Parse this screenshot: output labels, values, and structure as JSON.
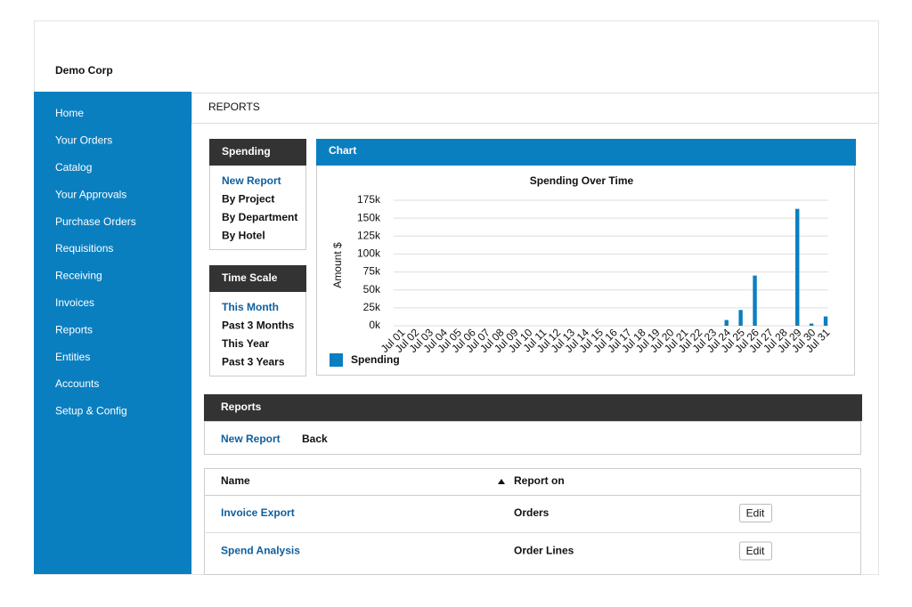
{
  "header": {
    "company": "Demo Corp"
  },
  "nav": [
    "Home",
    "Your Orders",
    "Catalog",
    "Your Approvals",
    "Purchase Orders",
    "Requisitions",
    "Receiving",
    "Invoices",
    "Reports",
    "Entities",
    "Accounts",
    "Setup & Config"
  ],
  "page_title": "REPORTS",
  "spending_panel": {
    "title": "Spending",
    "items": [
      "New Report",
      "By Project",
      "By Department",
      "By Hotel"
    ]
  },
  "time_scale_panel": {
    "title": "Time Scale",
    "items": [
      "This Month",
      "Past 3 Months",
      "This Year",
      "Past 3 Years"
    ]
  },
  "chart_panel_title": "Chart",
  "chart_data": {
    "type": "bar",
    "title": "Spending Over Time",
    "y_label": "Amount $",
    "categories": [
      "Jul 01",
      "Jul 02",
      "Jul 03",
      "Jul 04",
      "Jul 05",
      "Jul 06",
      "Jul 07",
      "Jul 08",
      "Jul 09",
      "Jul 10",
      "Jul 11",
      "Jul 12",
      "Jul 13",
      "Jul 14",
      "Jul 15",
      "Jul 16",
      "Jul 17",
      "Jul 18",
      "Jul 19",
      "Jul 20",
      "Jul 21",
      "Jul 22",
      "Jul 23",
      "Jul 24",
      "Jul 25",
      "Jul 26",
      "Jul 27",
      "Jul 28",
      "Jul 29",
      "Jul 30",
      "Jul 31"
    ],
    "series": [
      {
        "name": "Spending",
        "color": "#0a7fc0",
        "values": [
          0,
          0,
          0,
          0,
          0,
          0,
          0,
          0,
          0,
          0,
          0,
          0,
          0,
          0,
          0,
          0,
          0,
          0,
          0,
          0,
          0,
          0,
          0,
          8000,
          22000,
          70000,
          0,
          0,
          163000,
          3000,
          13000
        ]
      }
    ],
    "ylim": [
      0,
      175000
    ],
    "yticks": [
      {
        "value": 0,
        "label": "0k"
      },
      {
        "value": 25000,
        "label": "25k"
      },
      {
        "value": 50000,
        "label": "50k"
      },
      {
        "value": 75000,
        "label": "75k"
      },
      {
        "value": 100000,
        "label": "100k"
      },
      {
        "value": 125000,
        "label": "125k"
      },
      {
        "value": 150000,
        "label": "150k"
      },
      {
        "value": 175000,
        "label": "175k"
      }
    ],
    "grid": true
  },
  "reports": {
    "title": "Reports",
    "actions": [
      "New Report",
      "Back"
    ],
    "columns": [
      "Name",
      "Report on"
    ],
    "rows": [
      [
        "Invoice Export",
        "Orders",
        "Edit"
      ],
      [
        "Spend Analysis",
        "Order Lines",
        "Edit"
      ]
    ]
  }
}
